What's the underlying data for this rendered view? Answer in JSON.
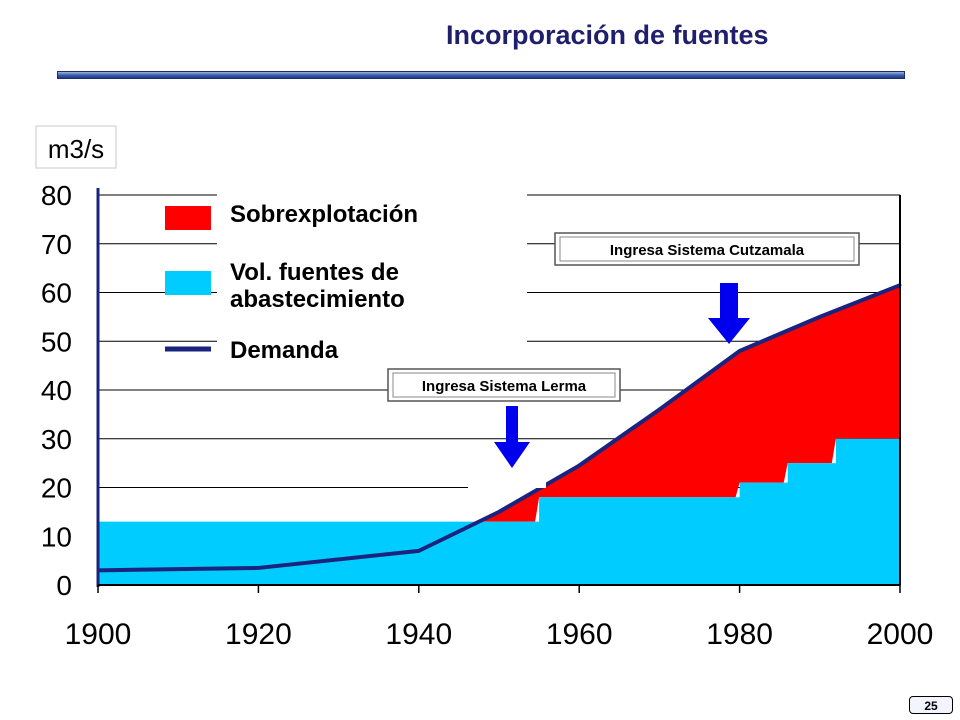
{
  "title": "Incorporación de fuentes",
  "page_number": "25",
  "colors": {
    "overexploitation": "#ff0000",
    "supply": "#00ccff",
    "demand": "#1a237e",
    "arrow": "#0000ee"
  },
  "chart_data": {
    "type": "area",
    "title": "Incorporación de fuentes",
    "ylabel": "m3/s",
    "xlabel": "",
    "xlim": [
      1900,
      2000
    ],
    "ylim": [
      0,
      80
    ],
    "x_ticks": [
      "1900",
      "1920",
      "1940",
      "1960",
      "1980",
      "2000"
    ],
    "y_ticks": [
      "0",
      "10",
      "20",
      "30",
      "40",
      "50",
      "60",
      "70",
      "80"
    ],
    "grid": true,
    "legend_position": "top-left",
    "legend": {
      "overexploitation": "Sobrexplotación",
      "supply_line1": "Vol. fuentes de",
      "supply_line2": "abastecimiento",
      "demand": "Demanda"
    },
    "series": [
      {
        "name": "Demanda",
        "type": "line",
        "x": [
          1900,
          1920,
          1940,
          1950,
          1960,
          1970,
          1980,
          1990,
          2000
        ],
        "y": [
          3,
          3.5,
          7,
          15,
          24.5,
          36,
          48,
          55,
          61.5
        ]
      },
      {
        "name": "Vol. fuentes de abastecimiento",
        "type": "step-area",
        "x": [
          1900,
          1955,
          1955,
          1980,
          1980,
          1986,
          1986,
          1992,
          1992,
          2000
        ],
        "y": [
          13,
          13,
          18,
          18,
          21,
          21,
          25,
          25,
          30,
          30
        ]
      }
    ],
    "annotations": [
      {
        "text": "Ingresa Sistema Lerma",
        "x": 1952
      },
      {
        "text": "Ingresa Sistema Cutzamala",
        "x": 1978
      }
    ]
  }
}
